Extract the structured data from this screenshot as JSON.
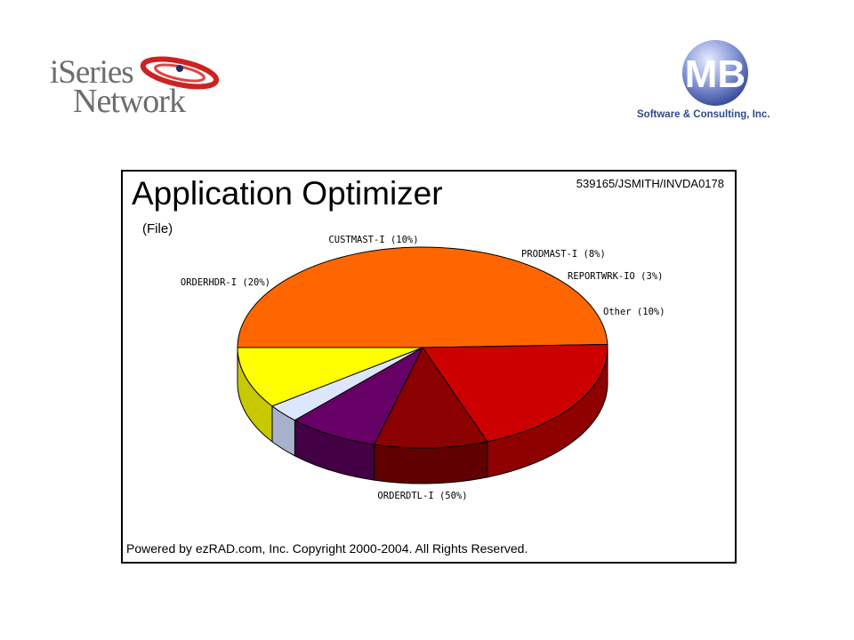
{
  "logos": {
    "left": {
      "line1": "iSeries",
      "line2": "Network"
    },
    "right": {
      "monogram": "MB",
      "company": "Software & Consulting, Inc."
    }
  },
  "chart_data": {
    "type": "pie",
    "title": "Application Optimizer",
    "subtitle": "(File)",
    "identifier": "539165/JSMITH/INVDA0178",
    "footer": "Powered by ezRAD.com, Inc. Copyright 2000-2004.  All Rights Reserved.",
    "slices": [
      {
        "label": "ORDERDTL-I (50%)",
        "name": "ORDERDTL-I",
        "value": 50,
        "color": "#ff6600",
        "shade": "#c84f00"
      },
      {
        "label": "ORDERHDR-I (20%)",
        "name": "ORDERHDR-I",
        "value": 20,
        "color": "#cc0000",
        "shade": "#8f0000"
      },
      {
        "label": "CUSTMAST-I (10%)",
        "name": "CUSTMAST-I",
        "value": 10,
        "color": "#8b0000",
        "shade": "#600000"
      },
      {
        "label": "PRODMAST-I (8%)",
        "name": "PRODMAST-I",
        "value": 8,
        "color": "#660066",
        "shade": "#440044"
      },
      {
        "label": "REPORTWRK-IO (3%)",
        "name": "REPORTWRK-IO",
        "value": 3,
        "color": "#dde6ff",
        "shade": "#a8b2cc"
      },
      {
        "label": "Other (10%)",
        "name": "Other",
        "value": 10,
        "color": "#ffff00",
        "shade": "#c8c800"
      }
    ]
  }
}
